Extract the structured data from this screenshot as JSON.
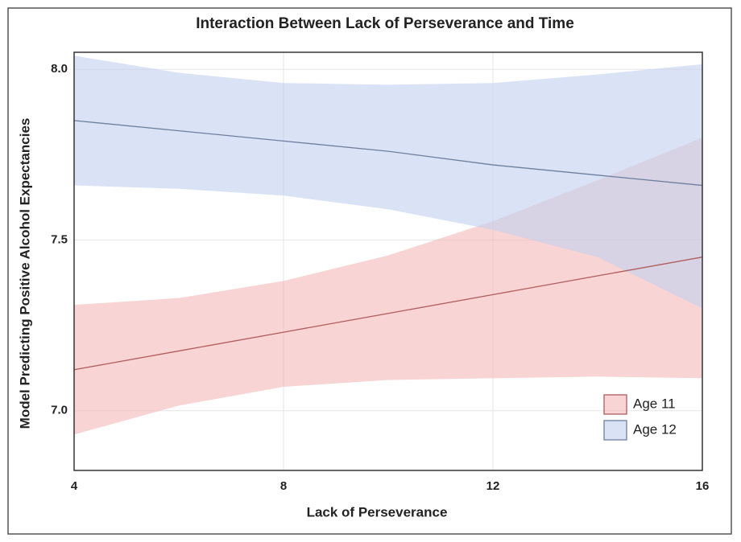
{
  "chart_data": {
    "type": "line-band",
    "title": "Interaction Between Lack of Perseverance and Time",
    "x_label": "Lack of Perseverance",
    "y_label": "Model Predicting Positive Alcohol Expectancies",
    "x": [
      4,
      6,
      8,
      10,
      12,
      14,
      16
    ],
    "series": [
      {
        "name": "Age 11",
        "color": "#b05c5c",
        "band_color": "#f4b8b8",
        "values": [
          7.12,
          7.175,
          7.23,
          7.285,
          7.34,
          7.395,
          7.45
        ],
        "lower": [
          6.93,
          7.015,
          7.07,
          7.09,
          7.095,
          7.1,
          7.095
        ],
        "upper": [
          7.31,
          7.33,
          7.38,
          7.455,
          7.555,
          7.675,
          7.8
        ]
      },
      {
        "name": "Age 12",
        "color": "#6d7fa0",
        "band_color": "#c2d1ee",
        "values": [
          7.85,
          7.82,
          7.79,
          7.76,
          7.72,
          7.69,
          7.66
        ],
        "lower": [
          7.66,
          7.65,
          7.63,
          7.59,
          7.53,
          7.45,
          7.3
        ],
        "upper": [
          8.04,
          7.99,
          7.96,
          7.955,
          7.96,
          7.985,
          8.015
        ]
      }
    ],
    "xlim": [
      4,
      16
    ],
    "ylim": [
      6.825,
      8.05
    ],
    "xticks": [
      4,
      8,
      12,
      16
    ],
    "yticks": [
      {
        "value": 7,
        "label": "7.0"
      },
      7.5,
      {
        "value": 8,
        "label": "8.0"
      }
    ],
    "grid": true,
    "legend": "lower right"
  }
}
